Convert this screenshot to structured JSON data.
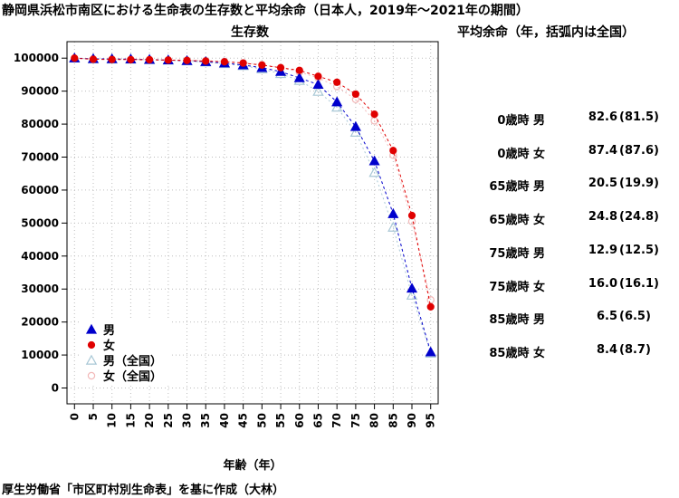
{
  "title": "静岡県浜松市南区における生命表の生存数と平均余命（日本人，2019年～2021年の期間）",
  "chart_title": "生存数",
  "side_title": "平均余命（年，括弧内は全国）",
  "source": "厚生労働省「市区町村別生命表」を基に作成（大林）",
  "colors": {
    "male": "#0000cc",
    "female": "#e00000",
    "male_nat": "#a9c8d6",
    "female_nat": "#f2b8b8",
    "grid": "#bdbdbd"
  },
  "chart_data": {
    "type": "line",
    "xlabel": "年齢（年）",
    "ylabel": "",
    "x": [
      0,
      5,
      10,
      15,
      20,
      25,
      30,
      35,
      40,
      45,
      50,
      55,
      60,
      65,
      70,
      75,
      80,
      85,
      90,
      95
    ],
    "ylim": [
      0,
      100000
    ],
    "y_ticks": [
      0,
      10000,
      20000,
      30000,
      40000,
      50000,
      60000,
      70000,
      80000,
      90000,
      100000
    ],
    "grid": true,
    "legend_position": "bottom-left",
    "series": [
      {
        "name": "男",
        "values": [
          100000,
          99800,
          99750,
          99700,
          99550,
          99400,
          99200,
          98900,
          98500,
          97900,
          97100,
          95900,
          94000,
          92000,
          86700,
          79200,
          68800,
          52800,
          30200,
          10900
        ]
      },
      {
        "name": "女",
        "values": [
          100000,
          99650,
          99600,
          99550,
          99500,
          99400,
          99300,
          99100,
          98900,
          98500,
          97900,
          97100,
          96300,
          94500,
          92700,
          89100,
          83000,
          72000,
          52300,
          24600
        ]
      },
      {
        "name": "男（全国）",
        "values": [
          100000,
          99750,
          99700,
          99650,
          99500,
          99350,
          99150,
          98800,
          98300,
          97700,
          96700,
          95300,
          93200,
          89900,
          85100,
          77500,
          65300,
          48700,
          28100,
          10500
        ]
      },
      {
        "name": "女（全国）",
        "values": [
          100000,
          99750,
          99700,
          99650,
          99600,
          99500,
          99400,
          99250,
          99000,
          98600,
          98000,
          97100,
          95800,
          94000,
          91400,
          87500,
          81000,
          70600,
          50500,
          26700
        ]
      }
    ]
  },
  "life_expectancy": [
    {
      "label": "0歳時 男",
      "local": "82.6",
      "national": "(81.5)"
    },
    {
      "label": "0歳時 女",
      "local": "87.4",
      "national": "(87.6)"
    },
    {
      "label": "65歳時 男",
      "local": "20.5",
      "national": "(19.9)"
    },
    {
      "label": "65歳時 女",
      "local": "24.8",
      "national": "(24.8)"
    },
    {
      "label": "75歳時 男",
      "local": "12.9",
      "national": "(12.5)"
    },
    {
      "label": "75歳時 女",
      "local": "16.0",
      "national": "(16.1)"
    },
    {
      "label": "85歳時 男",
      "local": "6.5",
      "national": "(6.5)"
    },
    {
      "label": "85歳時 女",
      "local": "8.4",
      "national": "(8.7)"
    }
  ]
}
